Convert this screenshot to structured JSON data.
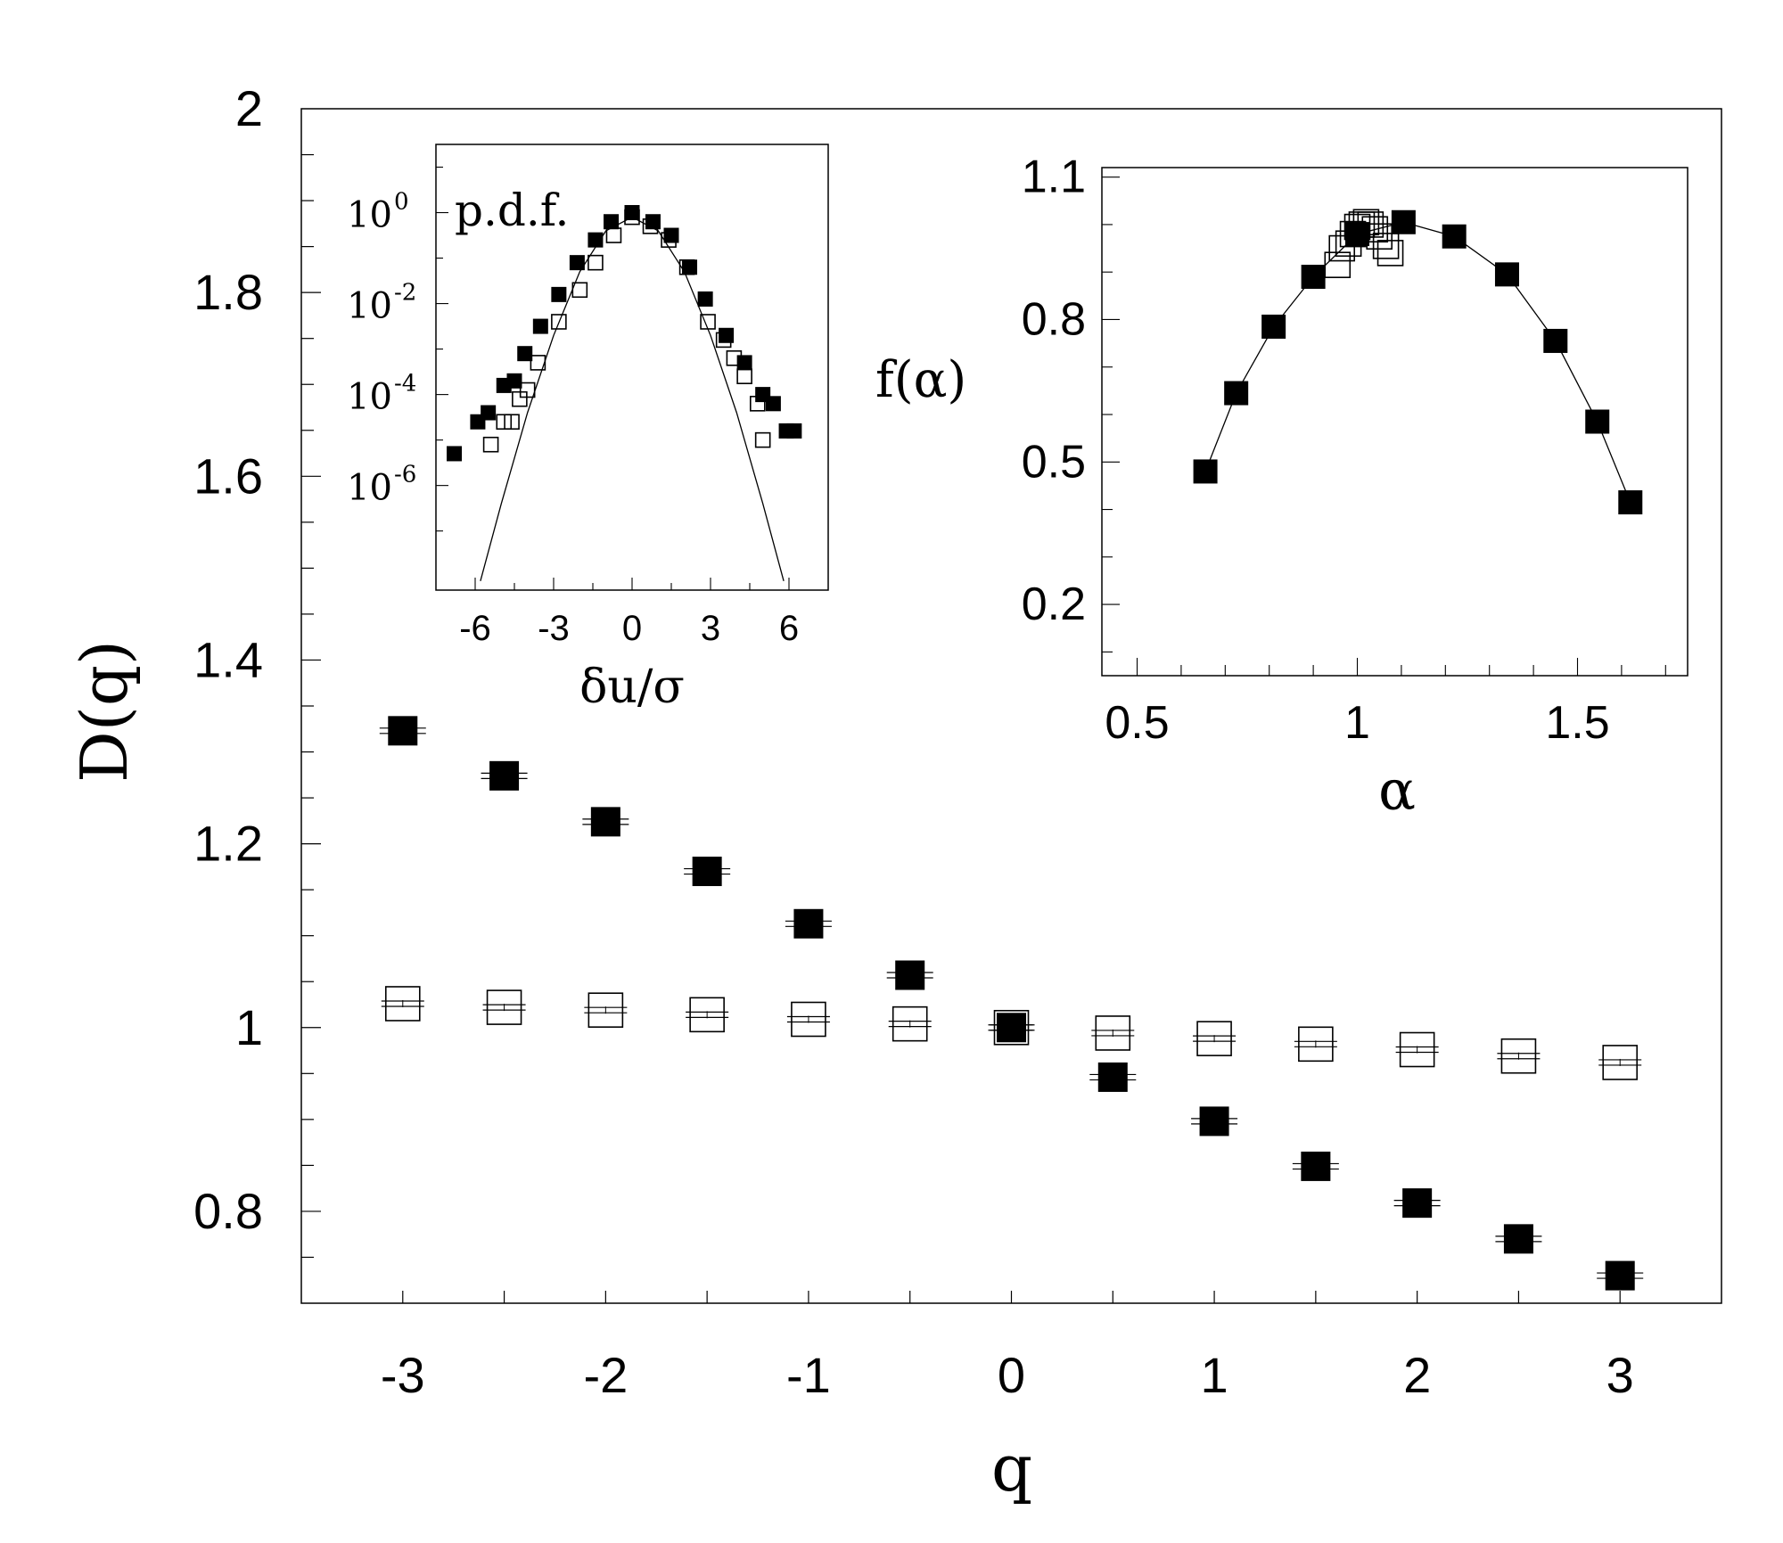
{
  "chart_data": [
    {
      "id": "main",
      "type": "scatter",
      "xlabel": "q",
      "ylabel": "D(q)",
      "xlim": [
        -3.5,
        3.5
      ],
      "ylim": [
        0.7,
        2.0
      ],
      "xticks": [
        -3,
        -2,
        -1,
        0,
        1,
        2,
        3
      ],
      "xtick_labels": [
        "-3",
        "-2",
        "-1",
        "0",
        "1",
        "2",
        "3"
      ],
      "yticks": [
        0.8,
        1,
        1.2,
        1.4,
        1.6,
        1.8,
        2
      ],
      "ytick_labels": [
        "0.8",
        "1",
        "1.2",
        "1.4",
        "1.6",
        "1.8",
        "2"
      ],
      "grid": false,
      "series": [
        {
          "marker": "filled-square",
          "x": [
            -3,
            -2.5,
            -2,
            -1.5,
            -1,
            -0.5,
            0,
            0.5,
            1,
            1.5,
            2,
            2.5,
            3
          ],
          "y": [
            1.323,
            1.274,
            1.224,
            1.17,
            1.113,
            1.057,
            1.0,
            0.946,
            0.898,
            0.849,
            0.809,
            0.77,
            0.73
          ]
        },
        {
          "marker": "open-square",
          "x": [
            -3,
            -2.5,
            -2,
            -1.5,
            -1,
            -0.5,
            0,
            0.5,
            1,
            1.5,
            2,
            2.5,
            3
          ],
          "y": [
            1.026,
            1.022,
            1.019,
            1.014,
            1.009,
            1.004,
            1.0,
            0.994,
            0.988,
            0.982,
            0.976,
            0.969,
            0.962
          ]
        }
      ]
    },
    {
      "id": "pdf-inset",
      "type": "scatter",
      "title": "p.d.f.",
      "xlabel": "δu/σ",
      "ylabel": "",
      "xlim": [
        -7.5,
        7.5
      ],
      "ylog_lim": [
        -8.3,
        1.5
      ],
      "log_scale_y": true,
      "xticks": [
        -6,
        -3,
        0,
        3,
        6
      ],
      "xtick_labels": [
        "-6",
        "-3",
        "0",
        "3",
        "6"
      ],
      "yticks_log": [
        0,
        -2,
        -4,
        -6
      ],
      "ytick_base": "10",
      "ytick_exponents": [
        "0",
        "-2",
        "-4",
        "-6"
      ],
      "series": [
        {
          "marker": "filled-square",
          "x": [
            -6.8,
            -5.9,
            -5.5,
            -4.9,
            -4.5,
            -4.1,
            -3.5,
            -2.8,
            -2.1,
            -1.4,
            -0.8,
            0,
            0.8,
            1.5,
            2.2,
            2.8,
            3.6,
            4.3,
            5.0,
            5.4,
            5.9,
            6.2
          ],
          "log10y": [
            -5.3,
            -4.6,
            -4.4,
            -3.8,
            -3.7,
            -3.1,
            -2.5,
            -1.8,
            -1.1,
            -0.6,
            -0.2,
            0.0,
            -0.2,
            -0.5,
            -1.2,
            -1.9,
            -2.7,
            -3.3,
            -4.0,
            -4.2,
            -4.8,
            -4.8
          ]
        },
        {
          "marker": "open-square",
          "x": [
            -5.4,
            -4.9,
            -4.6,
            -4.3,
            -4.0,
            -3.6,
            -2.8,
            -2.0,
            -1.4,
            -0.7,
            0,
            0.7,
            1.4,
            2.1,
            2.9,
            3.5,
            3.9,
            4.3,
            4.8,
            5.0
          ],
          "log10y": [
            -5.1,
            -4.6,
            -4.6,
            -4.1,
            -3.9,
            -3.3,
            -2.4,
            -1.7,
            -1.1,
            -0.5,
            -0.1,
            -0.3,
            -0.6,
            -1.2,
            -2.4,
            -2.8,
            -3.2,
            -3.6,
            -4.2,
            -5.0
          ]
        },
        {
          "marker": "line",
          "x": [
            -5.8,
            -5,
            -4,
            -3,
            -2,
            -1,
            0,
            1,
            2,
            3,
            4,
            5,
            5.8
          ],
          "log10y": [
            -8.1,
            -6.4,
            -4.4,
            -2.7,
            -1.3,
            -0.4,
            -0.1,
            -0.4,
            -1.3,
            -2.7,
            -4.4,
            -6.4,
            -8.1
          ]
        }
      ]
    },
    {
      "id": "falpha-inset",
      "type": "line",
      "xlabel": "α",
      "ylabel": "f(α)",
      "xlim": [
        0.42,
        1.75
      ],
      "ylim": [
        0.05,
        1.12
      ],
      "xticks": [
        0.5,
        1,
        1.5
      ],
      "xtick_labels": [
        "0.5",
        "1",
        "1.5"
      ],
      "yticks": [
        0.2,
        0.5,
        0.8,
        1.1
      ],
      "ytick_labels": [
        "0.2",
        "0.5",
        "0.8",
        "1.1"
      ],
      "series": [
        {
          "marker": "filled-square-with-line",
          "x": [
            0.655,
            0.725,
            0.81,
            0.9,
            1.0,
            1.105,
            1.22,
            1.34,
            1.45,
            1.545,
            1.62
          ],
          "y": [
            0.48,
            0.645,
            0.785,
            0.89,
            0.98,
            1.005,
            0.975,
            0.895,
            0.755,
            0.585,
            0.415
          ]
        },
        {
          "marker": "open-square",
          "x": [
            0.955,
            0.965,
            0.98,
            0.99,
            1.0,
            1.01,
            1.02,
            1.03,
            1.04,
            1.05,
            1.065,
            1.075
          ],
          "y": [
            0.915,
            0.95,
            0.96,
            0.98,
            0.995,
            1.0,
            1.005,
            1.0,
            0.99,
            0.975,
            0.955,
            0.94
          ]
        }
      ]
    }
  ]
}
